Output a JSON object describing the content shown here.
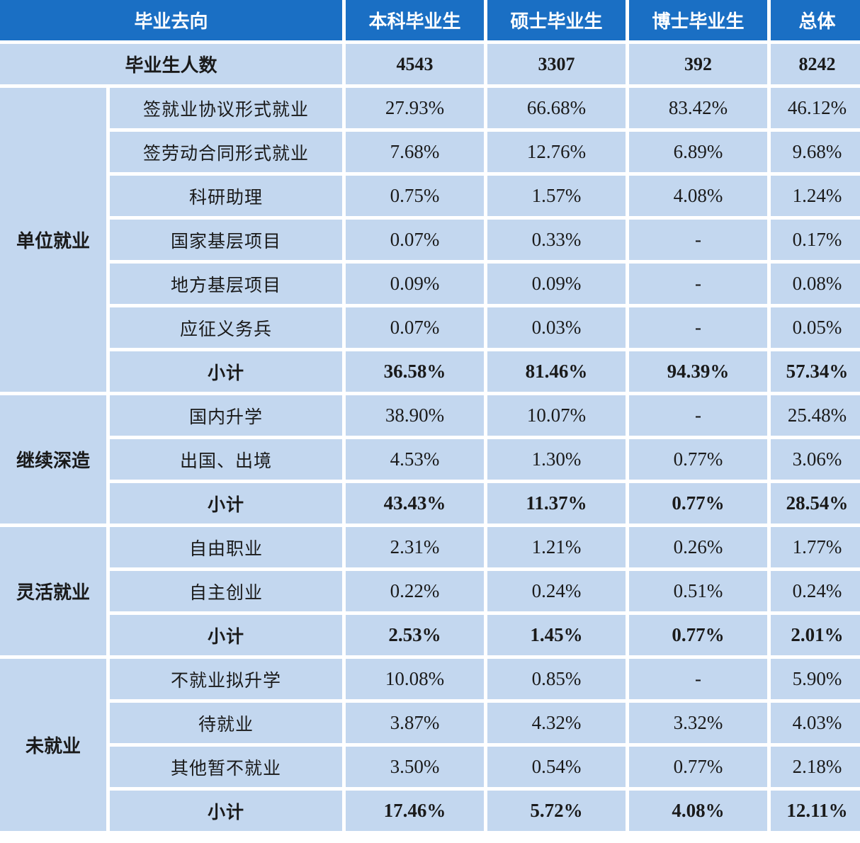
{
  "header": {
    "destination": "毕业去向",
    "bachelor": "本科毕业生",
    "master": "硕士毕业生",
    "doctor": "博士毕业生",
    "total": "总体"
  },
  "graduate_count": {
    "label": "毕业生人数",
    "bachelor": "4543",
    "master": "3307",
    "doctor": "392",
    "total": "8242"
  },
  "groups": [
    {
      "name": "单位就业",
      "rows": [
        {
          "item": "签就业协议形式就业",
          "bachelor": "27.93%",
          "master": "66.68%",
          "doctor": "83.42%",
          "total": "46.12%"
        },
        {
          "item": "签劳动合同形式就业",
          "bachelor": "7.68%",
          "master": "12.76%",
          "doctor": "6.89%",
          "total": "9.68%"
        },
        {
          "item": "科研助理",
          "bachelor": "0.75%",
          "master": "1.57%",
          "doctor": "4.08%",
          "total": "1.24%"
        },
        {
          "item": "国家基层项目",
          "bachelor": "0.07%",
          "master": "0.33%",
          "doctor": "-",
          "total": "0.17%"
        },
        {
          "item": "地方基层项目",
          "bachelor": "0.09%",
          "master": "0.09%",
          "doctor": "-",
          "total": "0.08%"
        },
        {
          "item": "应征义务兵",
          "bachelor": "0.07%",
          "master": "0.03%",
          "doctor": "-",
          "total": "0.05%"
        }
      ],
      "subtotal": {
        "item": "小计",
        "bachelor": "36.58%",
        "master": "81.46%",
        "doctor": "94.39%",
        "total": "57.34%"
      }
    },
    {
      "name": "继续深造",
      "rows": [
        {
          "item": "国内升学",
          "bachelor": "38.90%",
          "master": "10.07%",
          "doctor": "-",
          "total": "25.48%"
        },
        {
          "item": "出国、出境",
          "bachelor": "4.53%",
          "master": "1.30%",
          "doctor": "0.77%",
          "total": "3.06%"
        }
      ],
      "subtotal": {
        "item": "小计",
        "bachelor": "43.43%",
        "master": "11.37%",
        "doctor": "0.77%",
        "total": "28.54%"
      }
    },
    {
      "name": "灵活就业",
      "rows": [
        {
          "item": "自由职业",
          "bachelor": "2.31%",
          "master": "1.21%",
          "doctor": "0.26%",
          "total": "1.77%"
        },
        {
          "item": "自主创业",
          "bachelor": "0.22%",
          "master": "0.24%",
          "doctor": "0.51%",
          "total": "0.24%"
        }
      ],
      "subtotal": {
        "item": "小计",
        "bachelor": "2.53%",
        "master": "1.45%",
        "doctor": "0.77%",
        "total": "2.01%"
      }
    },
    {
      "name": "未就业",
      "rows": [
        {
          "item": "不就业拟升学",
          "bachelor": "10.08%",
          "master": "0.85%",
          "doctor": "-",
          "total": "5.90%"
        },
        {
          "item": "待就业",
          "bachelor": "3.87%",
          "master": "4.32%",
          "doctor": "3.32%",
          "total": "4.03%"
        },
        {
          "item": "其他暂不就业",
          "bachelor": "3.50%",
          "master": "0.54%",
          "doctor": "0.77%",
          "total": "2.18%"
        }
      ],
      "subtotal": {
        "item": "小计",
        "bachelor": "17.46%",
        "master": "5.72%",
        "doctor": "4.08%",
        "total": "12.11%"
      }
    }
  ],
  "colors": {
    "header_bg": "#1a6fc4",
    "header_text": "#ffffff",
    "cell_bg": "#c3d7ef",
    "border": "#ffffff"
  }
}
